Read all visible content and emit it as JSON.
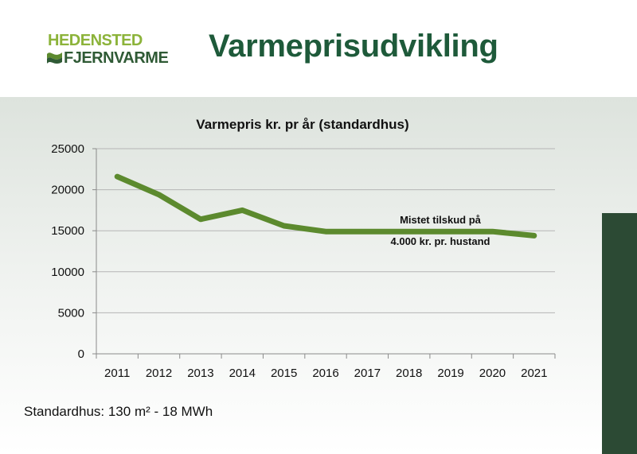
{
  "logo": {
    "line1": "HEDENSTED",
    "line2": "FJERNVARME"
  },
  "page_title": "Varmeprisudvikling",
  "footnote": "Standardhus: 130 m² - 18 MWh",
  "colors": {
    "line": "#5c8a2e",
    "title": "#1e5a3a",
    "sidebar": "#2c4a34",
    "grid": "#b5b5b5"
  },
  "chart_data": {
    "type": "line",
    "title": "Varmepris kr. pr år (standardhus)",
    "xlabel": "",
    "ylabel": "",
    "categories": [
      "2011",
      "2012",
      "2013",
      "2014",
      "2015",
      "2016",
      "2017",
      "2018",
      "2019",
      "2020",
      "2021"
    ],
    "series": [
      {
        "name": "Varmepris",
        "values": [
          21600,
          19400,
          16400,
          17500,
          15600,
          14900,
          14900,
          14900,
          14900,
          14900,
          14400
        ]
      }
    ],
    "ylim": [
      0,
      25000
    ],
    "yticks": [
      "0",
      "5000",
      "10000",
      "15000",
      "20000",
      "25000"
    ],
    "grid": true,
    "annotation": {
      "line1": "Mistet tilskud på",
      "line2": "4.000 kr. pr. hustand"
    }
  }
}
